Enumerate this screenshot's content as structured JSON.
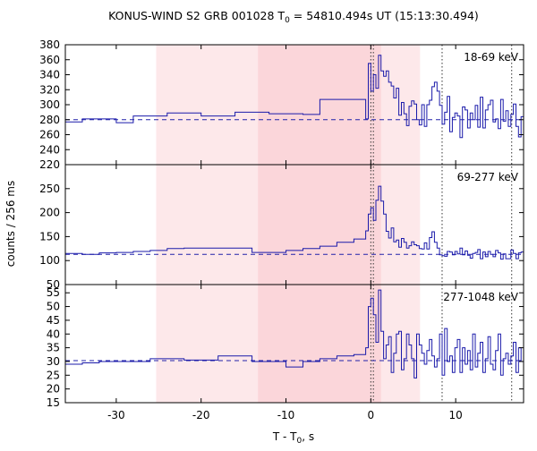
{
  "chart_data": {
    "type": "line",
    "title": "KONUS-WIND S2 GRB 001028 T",
    "title_sub": "0",
    "title_rest": " = 54810.494s UT (15:13:30.494)",
    "xlabel": "T - T",
    "xlabel_sub": "0",
    "xlabel_rest": ", s",
    "ylabel": "counts / 256 ms",
    "xlim": [
      -36,
      18
    ],
    "xticks": [
      -30,
      -20,
      -10,
      0,
      10
    ],
    "shaded_intervals": [
      {
        "x0": -25.3,
        "x1": 5.8,
        "color": "#fde8ea"
      },
      {
        "x0": -13.3,
        "x1": 1.2,
        "color": "#fbd6da"
      }
    ],
    "dotted_vlines": [
      0.0,
      0.3,
      8.4,
      16.6
    ],
    "panels": [
      {
        "label": "18-69 keV",
        "ylim": [
          220,
          380
        ],
        "yticks": [
          220,
          240,
          260,
          280,
          300,
          320,
          340,
          360,
          380
        ],
        "background": 280,
        "x": [
          -36,
          -34,
          -32,
          -30,
          -28,
          -26,
          -24,
          -22,
          -20,
          -18,
          -16,
          -14,
          -12,
          -10,
          -8,
          -6,
          -4,
          -2,
          -0.6,
          -0.3,
          0,
          0.3,
          0.6,
          0.9,
          1.2,
          1.5,
          1.8,
          2.1,
          2.4,
          2.7,
          3.0,
          3.3,
          3.6,
          3.9,
          4.2,
          4.5,
          4.8,
          5.1,
          5.4,
          5.7,
          6.0,
          6.3,
          6.6,
          6.9,
          7.2,
          7.5,
          7.8,
          8.1,
          8.4,
          8.7,
          9.0,
          9.3,
          9.6,
          9.9,
          10.2,
          10.5,
          10.8,
          11.1,
          11.4,
          11.7,
          12.0,
          12.3,
          12.6,
          12.9,
          13.2,
          13.5,
          13.8,
          14.1,
          14.4,
          14.7,
          15.0,
          15.3,
          15.6,
          15.9,
          16.2,
          16.5,
          16.8,
          17.1,
          17.4,
          17.7
        ],
        "y": [
          277,
          281,
          281,
          276,
          285,
          285,
          289,
          289,
          285,
          285,
          290,
          290,
          288,
          288,
          287,
          307,
          307,
          307,
          281,
          355,
          318,
          340,
          322,
          366,
          345,
          338,
          345,
          330,
          325,
          309,
          322,
          286,
          303,
          288,
          272,
          298,
          305,
          301,
          280,
          273,
          300,
          271,
          300,
          306,
          324,
          330,
          318,
          299,
          274,
          290,
          311,
          264,
          283,
          289,
          285,
          256,
          297,
          293,
          269,
          289,
          280,
          299,
          270,
          310,
          269,
          293,
          300,
          306,
          277,
          281,
          268,
          307,
          278,
          292,
          271,
          287,
          301,
          271,
          257,
          284
        ]
      },
      {
        "label": "69-277 keV",
        "ylim": [
          50,
          300
        ],
        "yticks": [
          50,
          100,
          150,
          200,
          250
        ],
        "background": 113,
        "x": [
          -36,
          -34,
          -32,
          -30,
          -28,
          -26,
          -24,
          -22,
          -20,
          -18,
          -16,
          -14,
          -12,
          -10,
          -8,
          -6,
          -4,
          -2,
          -0.6,
          -0.3,
          0,
          0.3,
          0.6,
          0.9,
          1.2,
          1.5,
          1.8,
          2.1,
          2.4,
          2.7,
          3.0,
          3.3,
          3.6,
          3.9,
          4.2,
          4.5,
          4.8,
          5.1,
          5.4,
          5.7,
          6.0,
          6.3,
          6.6,
          6.9,
          7.2,
          7.5,
          7.8,
          8.1,
          8.4,
          8.7,
          9.0,
          9.3,
          9.6,
          9.9,
          10.2,
          10.5,
          10.8,
          11.1,
          11.4,
          11.7,
          12.0,
          12.3,
          12.6,
          12.9,
          13.2,
          13.5,
          13.8,
          14.1,
          14.4,
          14.7,
          15.0,
          15.3,
          15.6,
          15.9,
          16.2,
          16.5,
          16.8,
          17.1,
          17.4,
          17.7
        ],
        "y": [
          115,
          113,
          116,
          117,
          119,
          121,
          125,
          126,
          126,
          126,
          126,
          117,
          117,
          121,
          125,
          130,
          138,
          145,
          162,
          197,
          210,
          184,
          226,
          255,
          224,
          197,
          161,
          147,
          168,
          139,
          143,
          128,
          146,
          138,
          126,
          131,
          139,
          133,
          131,
          125,
          124,
          137,
          124,
          148,
          160,
          138,
          126,
          112,
          110,
          109,
          119,
          118,
          112,
          119,
          114,
          126,
          112,
          120,
          111,
          105,
          115,
          117,
          123,
          104,
          118,
          108,
          119,
          113,
          108,
          121,
          116,
          103,
          114,
          104,
          104,
          122,
          115,
          104,
          116,
          118
        ]
      },
      {
        "label": "277-1048 keV",
        "ylim": [
          15,
          58
        ],
        "yticks": [
          15,
          20,
          25,
          30,
          35,
          40,
          45,
          50,
          55
        ],
        "background": 30.3,
        "x": [
          -36,
          -34,
          -32,
          -30,
          -28,
          -26,
          -24,
          -22,
          -20,
          -18,
          -16,
          -14,
          -12,
          -10,
          -8,
          -6,
          -4,
          -2,
          -0.6,
          -0.3,
          0,
          0.3,
          0.6,
          0.9,
          1.2,
          1.5,
          1.8,
          2.1,
          2.4,
          2.7,
          3.0,
          3.3,
          3.6,
          3.9,
          4.2,
          4.5,
          4.8,
          5.1,
          5.4,
          5.7,
          6.0,
          6.3,
          6.6,
          6.9,
          7.2,
          7.5,
          7.8,
          8.1,
          8.4,
          8.7,
          9.0,
          9.3,
          9.6,
          9.9,
          10.2,
          10.5,
          10.8,
          11.1,
          11.4,
          11.7,
          12.0,
          12.3,
          12.6,
          12.9,
          13.2,
          13.5,
          13.8,
          14.1,
          14.4,
          14.7,
          15.0,
          15.3,
          15.6,
          15.9,
          16.2,
          16.5,
          16.8,
          17.1,
          17.4,
          17.7
        ],
        "y": [
          29,
          29.5,
          30,
          30,
          30,
          31,
          31,
          30.5,
          30.5,
          32,
          32,
          30,
          30,
          28,
          30,
          31,
          32,
          32.5,
          35,
          50,
          53,
          47,
          37,
          56,
          41,
          31,
          36,
          39,
          26,
          33,
          40,
          41,
          27,
          31,
          40,
          36,
          31,
          24,
          40,
          36,
          33,
          29,
          34,
          38,
          32,
          28,
          31,
          40,
          25,
          42,
          30,
          32,
          26,
          35,
          38,
          26,
          35,
          29,
          34,
          27,
          40,
          28,
          33,
          37,
          26,
          31,
          39,
          29,
          27,
          34,
          40,
          25,
          31,
          33,
          29,
          32,
          37,
          26,
          35,
          30
        ]
      }
    ]
  }
}
